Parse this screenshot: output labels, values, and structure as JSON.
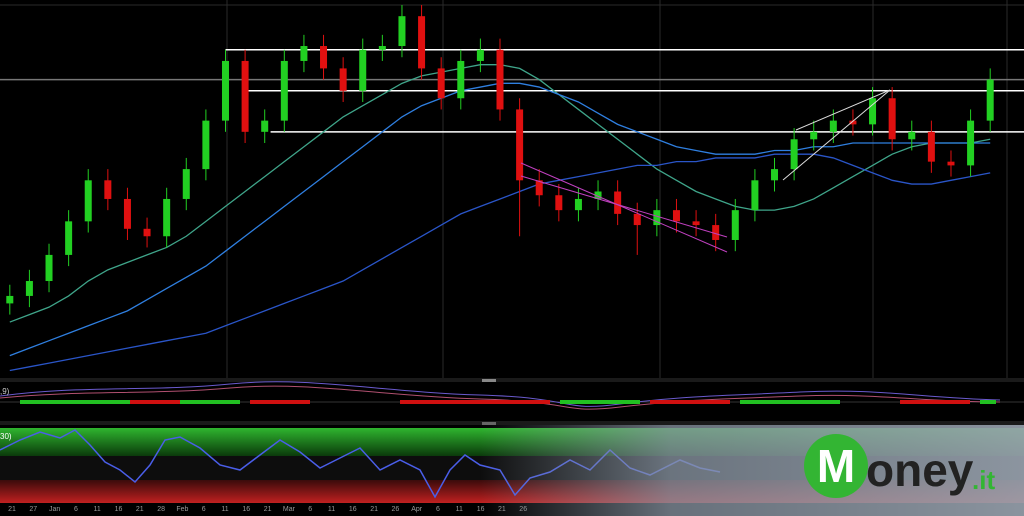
{
  "chart_data": {
    "type": "candlestick",
    "xlim": [
      -0.5,
      50.5
    ],
    "ylim": [
      0,
      100
    ],
    "open": [
      20,
      22,
      26,
      33,
      42,
      53,
      48,
      40,
      38,
      48,
      56,
      69,
      85,
      66,
      69,
      85,
      89,
      83,
      77,
      88,
      89,
      97,
      83,
      75,
      85,
      88,
      72,
      53,
      49,
      45,
      48,
      50,
      44,
      41,
      45,
      42,
      41,
      37,
      45,
      53,
      56,
      64,
      66,
      69,
      68,
      75,
      64,
      66,
      58,
      57,
      69
    ],
    "high": [
      25,
      29,
      36,
      45,
      56,
      56,
      51,
      43,
      51,
      59,
      72,
      88,
      88,
      72,
      88,
      92,
      92,
      86,
      91,
      92,
      100,
      100,
      86,
      88,
      91,
      91,
      75,
      56,
      52,
      51,
      53,
      53,
      47,
      48,
      48,
      45,
      44,
      48,
      56,
      59,
      67,
      69,
      72,
      72,
      78,
      78,
      69,
      69,
      61,
      72,
      83
    ],
    "low": [
      17,
      19,
      23,
      30,
      39,
      45,
      37,
      35,
      35,
      45,
      53,
      66,
      63,
      63,
      66,
      82,
      80,
      74,
      74,
      85,
      86,
      80,
      72,
      72,
      82,
      69,
      38,
      46,
      42,
      42,
      45,
      41,
      33,
      38,
      39,
      38,
      34,
      34,
      42,
      50,
      53,
      61,
      63,
      65,
      65,
      61,
      61,
      55,
      54,
      54,
      66
    ],
    "close": [
      22,
      26,
      33,
      42,
      53,
      48,
      40,
      38,
      48,
      56,
      69,
      85,
      66,
      69,
      85,
      89,
      83,
      77,
      88,
      89,
      97,
      83,
      75,
      85,
      88,
      72,
      53,
      49,
      45,
      48,
      50,
      44,
      41,
      45,
      42,
      41,
      37,
      45,
      53,
      56,
      64,
      66,
      69,
      68,
      75,
      64,
      66,
      58,
      57,
      69,
      80
    ],
    "up_color": "#22d022",
    "down_color": "#e01010",
    "series": [
      {
        "color": "#3fa58a",
        "values": [
          15,
          17,
          19,
          22,
          26,
          29,
          31,
          33,
          35,
          38,
          42,
          46,
          50,
          54,
          58,
          62,
          66,
          70,
          73,
          76,
          79,
          81,
          82,
          83,
          84,
          84,
          83,
          80,
          76,
          72,
          68,
          64,
          60,
          56,
          53,
          50,
          48,
          46,
          45,
          45,
          46,
          48,
          51,
          54,
          57,
          60,
          62,
          63,
          63,
          63,
          64
        ]
      },
      {
        "color": "#2f7fe0",
        "values": [
          6,
          8,
          10,
          12,
          14,
          16,
          18,
          21,
          24,
          27,
          30,
          34,
          38,
          42,
          46,
          50,
          54,
          58,
          62,
          66,
          70,
          73,
          75,
          77,
          78,
          79,
          79,
          78,
          76,
          74,
          71,
          68,
          66,
          64,
          62,
          61,
          60,
          60,
          60,
          61,
          61,
          62,
          62,
          63,
          63,
          63,
          63,
          63,
          63,
          63,
          63
        ]
      },
      {
        "color": "#2a55c8",
        "values": [
          2,
          3,
          4,
          5,
          6,
          7,
          8,
          9,
          10,
          11,
          12,
          14,
          16,
          18,
          20,
          22,
          24,
          26,
          29,
          32,
          35,
          38,
          41,
          44,
          46,
          48,
          50,
          52,
          53,
          54,
          55,
          56,
          57,
          57,
          58,
          58,
          59,
          59,
          59,
          60,
          60,
          60,
          59,
          57,
          55,
          53,
          52,
          52,
          53,
          54,
          55
        ]
      }
    ],
    "levels": [
      {
        "value": 88,
        "start": 11,
        "color": "#ffffff"
      },
      {
        "value": 80,
        "start": -0.5,
        "color": "#777777"
      },
      {
        "value": 77,
        "start": 12,
        "color": "#ffffff"
      },
      {
        "value": 66,
        "start": 13.3,
        "color": "#ffffff"
      }
    ],
    "xtick_labels": [
      "21",
      "27",
      "Jan",
      "6",
      "11",
      "16",
      "21",
      "28",
      "Feb",
      "6",
      "11",
      "16",
      "21",
      "Mar",
      "6",
      "11",
      "16",
      "21",
      "26",
      "Apr",
      "6",
      "11",
      "16",
      "21",
      "26"
    ],
    "panel_labels": [
      ",9)",
      "30)"
    ]
  },
  "logo": {
    "initial": "M",
    "rest": "oney",
    "suffix": ".it"
  }
}
